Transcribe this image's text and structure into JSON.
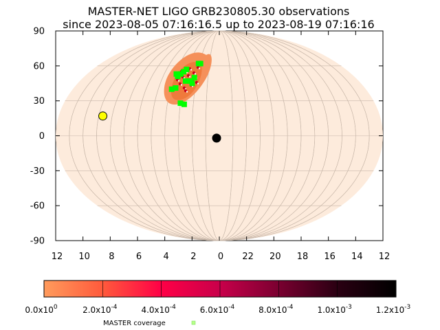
{
  "title": {
    "line1": "MASTER-NET LIGO GRB230805.30 observations",
    "line2": "since 2023-08-05 07:16:16.5 up to 2023-08-19 07:16:16"
  },
  "axes": {
    "y_ticks": [
      "90",
      "60",
      "30",
      "0",
      "-30",
      "-60",
      "-90"
    ],
    "x_ticks": [
      "12",
      "10",
      "8",
      "6",
      "4",
      "2",
      "0",
      "22",
      "20",
      "18",
      "16",
      "14",
      "12"
    ],
    "y_values": [
      90,
      60,
      30,
      0,
      -30,
      -60,
      -90
    ],
    "x_values_hours": [
      12,
      10,
      8,
      6,
      4,
      2,
      0,
      22,
      20,
      18,
      16,
      14,
      12
    ]
  },
  "colors": {
    "sky_fill": "#fdebdc",
    "grid": "#c9b8aa",
    "region_outer": "#f5905a",
    "region_inner": "#ef7a3c",
    "hotspot": "#c8001e",
    "coverage": "#00ff00",
    "sun": "#ffff00",
    "moon": "#000000"
  },
  "map_data": {
    "projection": "aitoff",
    "probability_region": {
      "center_ra_h": 2.4,
      "center_dec": 48,
      "extent_ra_h": [
        1.4,
        3.6
      ],
      "extent_dec": [
        26,
        68
      ]
    },
    "sun": {
      "ra_h": 8.7,
      "dec": 17
    },
    "moon": {
      "ra_h": 0.2,
      "dec": -2
    },
    "coverage_fields": [
      {
        "ra_h": 3.1,
        "dec": 57
      },
      {
        "ra_h": 3.3,
        "dec": 55
      },
      {
        "ra_h": 3.5,
        "dec": 53
      },
      {
        "ra_h": 3.7,
        "dec": 51
      },
      {
        "ra_h": 3.9,
        "dec": 53
      },
      {
        "ra_h": 1.9,
        "dec": 62
      },
      {
        "ra_h": 2.1,
        "dec": 62
      },
      {
        "ra_h": 2.9,
        "dec": 47
      },
      {
        "ra_h": 2.5,
        "dec": 47
      },
      {
        "ra_h": 2.3,
        "dec": 45
      },
      {
        "ra_h": 3.9,
        "dec": 40
      },
      {
        "ra_h": 3.6,
        "dec": 41
      },
      {
        "ra_h": 3.0,
        "dec": 28
      },
      {
        "ra_h": 2.7,
        "dec": 27
      },
      {
        "ra_h": 2.2,
        "dec": 50
      }
    ]
  },
  "colorbar": {
    "labels": [
      "0.0x10",
      "2.0x10",
      "4.0x10",
      "6.0x10",
      "8.0x10",
      "1.0x10",
      "1.2x10"
    ],
    "exponents": [
      "0",
      "-4",
      "-4",
      "-4",
      "-4",
      "-3",
      "-3"
    ],
    "min": 0,
    "max": 0.0012,
    "stops": [
      "#ff9b5c",
      "#ff5a3c",
      "#ff0046",
      "#c8004a",
      "#7a0030",
      "#2a0012",
      "#000000"
    ]
  },
  "legend": {
    "label": "MASTER coverage",
    "marker_color": "#00ff00"
  }
}
